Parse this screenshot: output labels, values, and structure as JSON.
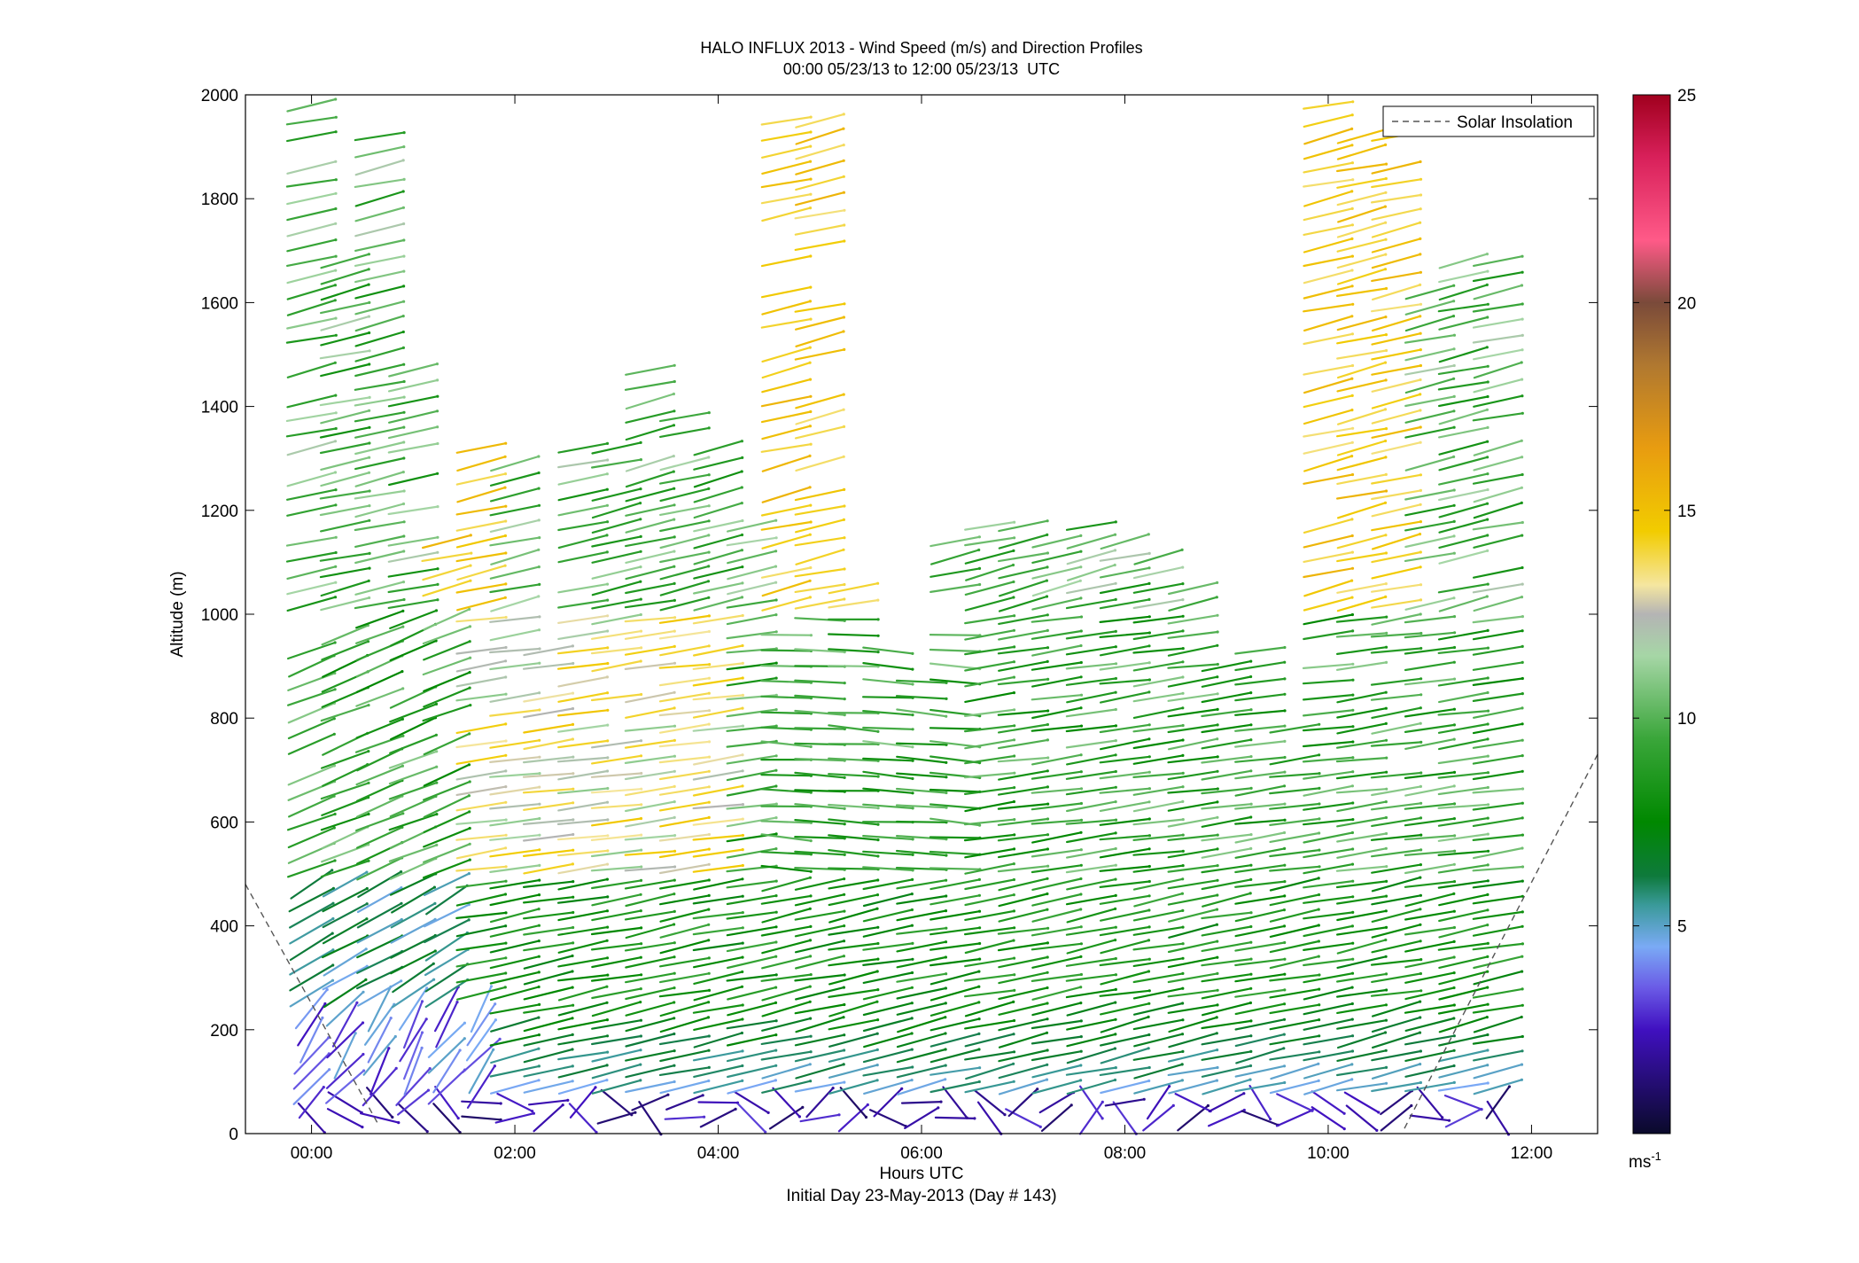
{
  "chart_data": {
    "type": "wind-barb-profile",
    "title": "HALO INFLUX 2013 - Wind Speed (m/s) and Direction Profiles",
    "subtitle": "00:00 05/23/13 to 12:00 05/23/13  UTC",
    "xlabel": "Hours UTC",
    "xlabel2": "Initial Day 23-May-2013 (Day # 143)",
    "ylabel": "Altitude (m)",
    "xlim": [
      -0.65,
      12.65
    ],
    "ylim": [
      0,
      2000
    ],
    "x_ticks": [
      {
        "value": 0,
        "label": "00:00"
      },
      {
        "value": 2,
        "label": "02:00"
      },
      {
        "value": 4,
        "label": "04:00"
      },
      {
        "value": 6,
        "label": "06:00"
      },
      {
        "value": 8,
        "label": "08:00"
      },
      {
        "value": 10,
        "label": "10:00"
      },
      {
        "value": 12,
        "label": "12:00"
      }
    ],
    "y_ticks": [
      {
        "value": 0,
        "label": "0"
      },
      {
        "value": 200,
        "label": "200"
      },
      {
        "value": 400,
        "label": "400"
      },
      {
        "value": 600,
        "label": "600"
      },
      {
        "value": 800,
        "label": "800"
      },
      {
        "value": 1000,
        "label": "1000"
      },
      {
        "value": 1200,
        "label": "1200"
      },
      {
        "value": 1400,
        "label": "1400"
      },
      {
        "value": 1600,
        "label": "1600"
      },
      {
        "value": 1800,
        "label": "1800"
      },
      {
        "value": 2000,
        "label": "2000"
      }
    ],
    "colorbar": {
      "range": [
        0,
        25
      ],
      "ticks": [
        {
          "value": 5,
          "label": "5"
        },
        {
          "value": 10,
          "label": "10"
        },
        {
          "value": 15,
          "label": "15"
        },
        {
          "value": 20,
          "label": "20"
        },
        {
          "value": 25,
          "label": "25"
        }
      ],
      "unit_label": "ms",
      "unit_exponent": "-1",
      "color_stops": [
        {
          "value": 0,
          "color": "#0a0a2a"
        },
        {
          "value": 2.5,
          "color": "#4010c0"
        },
        {
          "value": 3.5,
          "color": "#6a5ae6"
        },
        {
          "value": 4.5,
          "color": "#7aaaf5"
        },
        {
          "value": 5.5,
          "color": "#3a9a9a"
        },
        {
          "value": 6.2,
          "color": "#0e7a3c"
        },
        {
          "value": 7.5,
          "color": "#008800"
        },
        {
          "value": 9.5,
          "color": "#3aa63a"
        },
        {
          "value": 11.5,
          "color": "#a6d6a6"
        },
        {
          "value": 12.5,
          "color": "#b4b4b4"
        },
        {
          "value": 13.2,
          "color": "#f5e6a0"
        },
        {
          "value": 14.5,
          "color": "#f2cc00"
        },
        {
          "value": 16.5,
          "color": "#e89c10"
        },
        {
          "value": 18.5,
          "color": "#b07830"
        },
        {
          "value": 20,
          "color": "#7a4a3a"
        },
        {
          "value": 21.5,
          "color": "#ff5a88"
        },
        {
          "value": 23.5,
          "color": "#d8205a"
        },
        {
          "value": 25,
          "color": "#a0001e"
        }
      ]
    },
    "legend": {
      "label": "Solar Insolation",
      "position": "top-right",
      "style": "dashed",
      "color": "#555555"
    },
    "solar_insolation": [
      {
        "x": [
          -0.65,
          0.65
        ],
        "y": [
          480,
          20
        ]
      },
      {
        "x": [
          10.75,
          12.65
        ],
        "y": [
          10,
          730
        ]
      }
    ],
    "profiles": {
      "times": [
        0.0,
        0.33,
        0.67,
        1.0,
        1.33,
        1.67,
        2.0,
        2.33,
        2.67,
        3.0,
        3.33,
        3.67,
        4.0,
        4.33,
        4.67,
        5.0,
        5.33,
        5.67,
        6.0,
        6.33,
        6.67,
        7.0,
        7.33,
        7.67,
        8.0,
        8.33,
        8.67,
        9.0,
        9.33,
        9.67,
        10.0,
        10.33,
        10.67,
        11.0,
        11.33,
        11.67
      ],
      "altitude_step_m": 30,
      "max_altitude_m": [
        1980,
        1710,
        1920,
        1480,
        1140,
        1320,
        1320,
        950,
        1320,
        1320,
        1480,
        1400,
        1320,
        1180,
        1950,
        1950,
        1050,
        950,
        880,
        1150,
        1180,
        1180,
        1150,
        1170,
        1150,
        1130,
        1060,
        950,
        950,
        800,
        2000,
        1930,
        1920,
        1640,
        1700,
        1700
      ]
    }
  }
}
